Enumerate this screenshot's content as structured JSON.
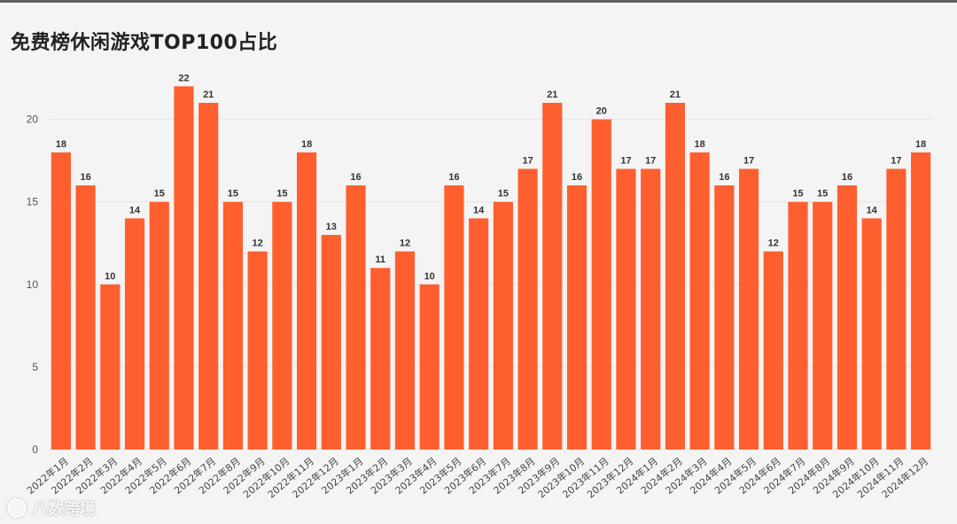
{
  "chart_data": {
    "type": "bar",
    "title": "免费榜休闲游戏TOP100占比",
    "categories": [
      "2022年1月",
      "2022年2月",
      "2022年3月",
      "2022年4月",
      "2022年5月",
      "2022年6月",
      "2022年7月",
      "2022年8月",
      "2022年9月",
      "2022年10月",
      "2022年11月",
      "2022年12月",
      "2023年1月",
      "2023年2月",
      "2023年3月",
      "2023年4月",
      "2023年5月",
      "2023年6月",
      "2023年7月",
      "2023年8月",
      "2023年9月",
      "2023年10月",
      "2023年11月",
      "2023年12月",
      "2024年1月",
      "2024年2月",
      "2024年3月",
      "2024年4月",
      "2024年5月",
      "2024年6月",
      "2024年7月",
      "2024年8月",
      "2024年9月",
      "2024年10月",
      "2024年11月",
      "2024年12月"
    ],
    "values": [
      18,
      16,
      10,
      14,
      15,
      22,
      21,
      15,
      12,
      15,
      18,
      13,
      16,
      11,
      12,
      10,
      16,
      14,
      15,
      17,
      21,
      16,
      20,
      17,
      17,
      21,
      18,
      16,
      17,
      12,
      15,
      15,
      16,
      14,
      17,
      18
    ],
    "ylim": [
      0,
      22
    ],
    "yticks": [
      0,
      5,
      10,
      15,
      20
    ],
    "bar_color": "#ff5f2e",
    "grid": true,
    "data_labels": true,
    "legend": "none"
  },
  "watermark": {
    "text": "八数跨境"
  }
}
